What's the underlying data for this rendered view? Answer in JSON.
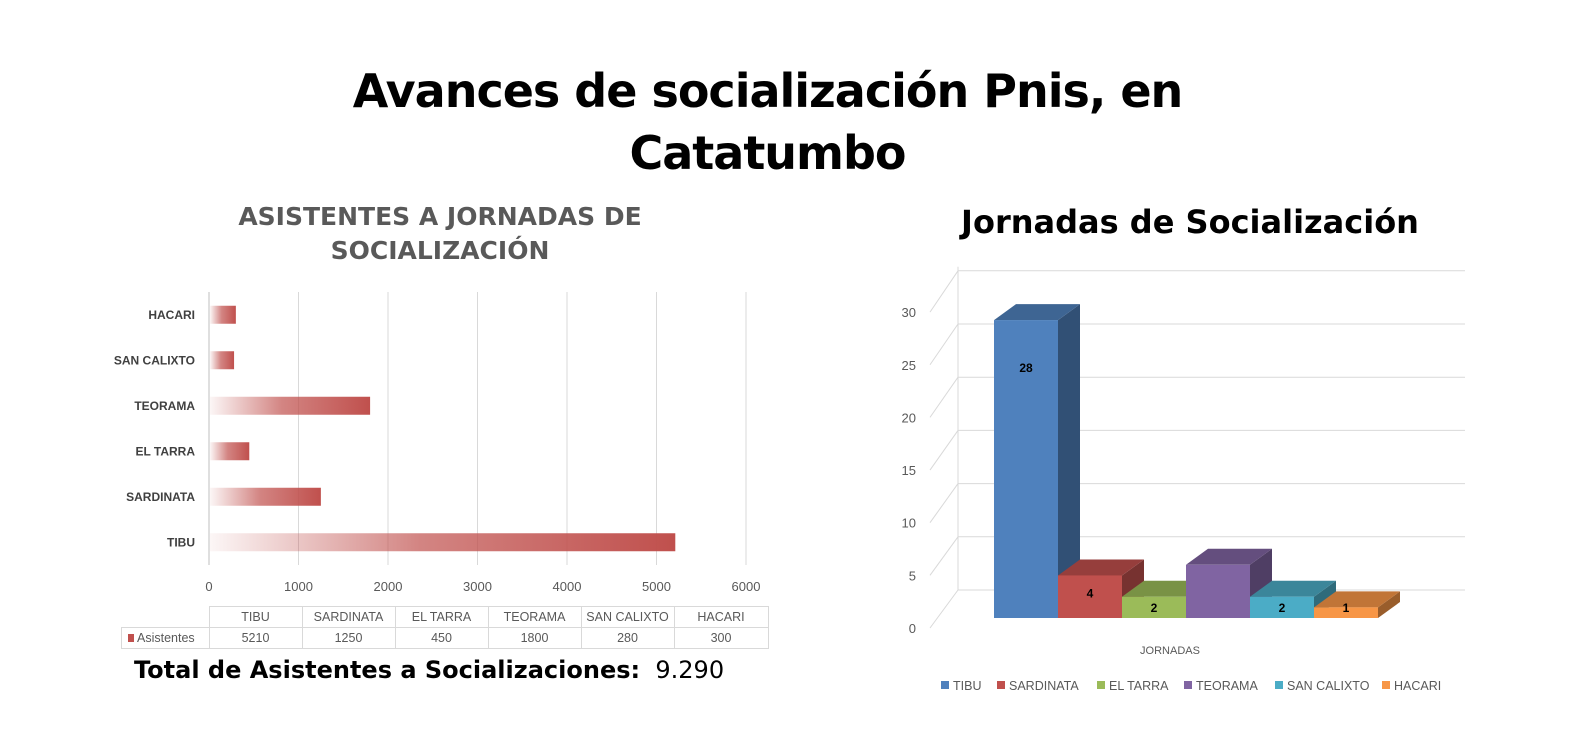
{
  "title": "Avances de socialización Pnis, en Catatumbo",
  "title_lines": [
    "Avances de socialización Pnis, en",
    "Catatumbo"
  ],
  "chart_data": [
    {
      "type": "bar",
      "orientation": "horizontal",
      "title": "ASISTENTES A JORNADAS DE SOCIALIZACIÓN",
      "title_lines": [
        "ASISTENTES A JORNADAS DE",
        "SOCIALIZACIÓN"
      ],
      "categories": [
        "TIBU",
        "SARDINATA",
        "EL TARRA",
        "TEORAMA",
        "SAN CALIXTO",
        "HACARI"
      ],
      "series": [
        {
          "name": "Asistentes",
          "values": [
            5210,
            1250,
            450,
            1800,
            280,
            300
          ],
          "color": "#c0504d"
        }
      ],
      "xlim": [
        0,
        6000
      ],
      "xticks": [
        0,
        1000,
        2000,
        3000,
        4000,
        5000,
        6000
      ],
      "grid": true,
      "data_table": true
    },
    {
      "type": "bar",
      "style": "3d-column",
      "title": "Jornadas de Socialización",
      "xlabel": "JORNADAS",
      "categories": [
        "TIBU",
        "SARDINATA",
        "EL TARRA",
        "TEORAMA",
        "SAN CALIXTO",
        "HACARI"
      ],
      "values": [
        28,
        4,
        2,
        5,
        2,
        1
      ],
      "data_labels": [
        "28",
        "4",
        "2",
        "",
        "2",
        "1"
      ],
      "colors": [
        "#4f81bd",
        "#c0504d",
        "#9bbb59",
        "#8064a2",
        "#4bacc6",
        "#f79646"
      ],
      "ylim": [
        0,
        30
      ],
      "yticks": [
        0,
        5,
        10,
        15,
        20,
        25,
        30
      ],
      "grid": true,
      "legend": "bottom"
    }
  ],
  "total": {
    "label": "Total de Asistentes a Socializaciones:",
    "value": "9.290"
  }
}
